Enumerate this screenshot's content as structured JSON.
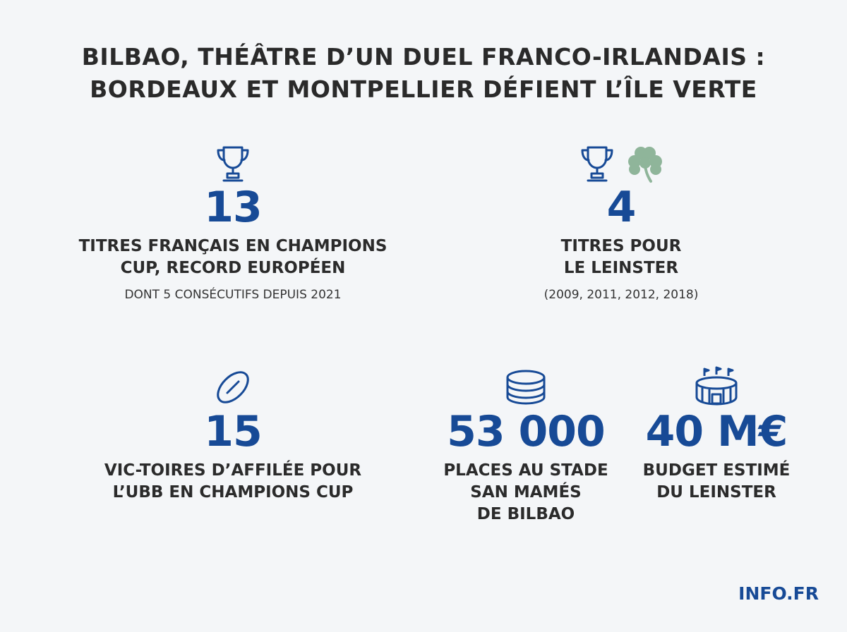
{
  "title": {
    "line1": "BILBAO, THÉÂTRE D’UN DUEL FRANCO-IRLANDAIS :",
    "line2": "BORDEAUX ET MONTPELLIER DÉFIENT L’ÎLE VERTE"
  },
  "stats": {
    "french_titles": {
      "icon": "trophy-icon",
      "value": "13",
      "label_line1": "TITRES FRANÇAIS EN CHAMPIONS",
      "label_line2": "CUP, RECORD EUROPÉEN",
      "sub": "DONT 5 CONSÉCUTIFS DEPUIS 2021"
    },
    "leinster_titles": {
      "icons": [
        "trophy-icon",
        "shamrock-icon"
      ],
      "value": "4",
      "label_line1": "TITRES POUR",
      "label_line2": "LE LEINSTER",
      "sub": "(2009, 2011, 2012, 2018)"
    },
    "ubb_wins": {
      "icon": "rugby-ball-icon",
      "value": "15",
      "label_line1": "VIC-TOIRES D’AFFILÉE POUR",
      "label_line2": "L’UBB EN CHAMPIONS CUP"
    },
    "stadium_seats": {
      "icon": "coin-stack-icon",
      "value": "53 000",
      "label_line1": "PLACES AU STADE",
      "label_line2": "SAN MAMÉS",
      "label_line3": "DE BILBAO"
    },
    "leinster_budget": {
      "icon": "stadium-icon",
      "value": "40 M€",
      "label_line1": "BUDGET ESTIMÉ",
      "label_line2": "DU LEINSTER"
    }
  },
  "footer": {
    "logo": "INFO.FR"
  },
  "colors": {
    "accent": "#174a96",
    "shamrock": "#8fb59a",
    "text": "#2b2b2b",
    "background": "#f4f6f8"
  }
}
